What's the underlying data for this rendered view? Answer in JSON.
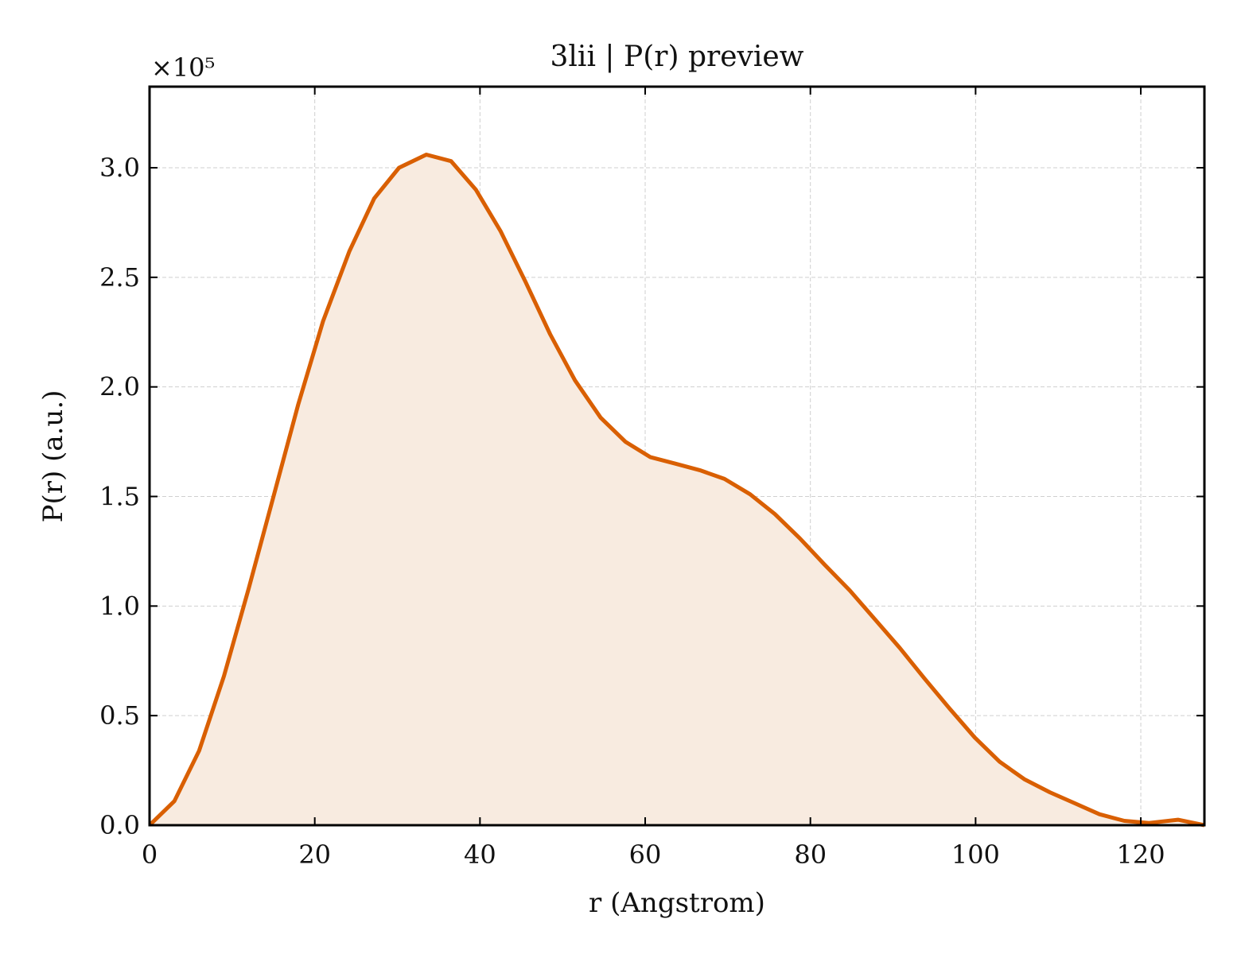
{
  "chart_data": {
    "type": "area",
    "title": "3lii | P(r) preview",
    "xlabel": "r (Angstrom)",
    "ylabel": "P(r) (a.u.)",
    "y_multiplier": "×10⁵",
    "xlim": [
      0,
      127.7
    ],
    "ylim": [
      0,
      3.37
    ],
    "xticks": [
      0,
      20,
      40,
      60,
      80,
      100,
      120
    ],
    "yticks": [
      0.0,
      0.5,
      1.0,
      1.5,
      2.0,
      2.5,
      3.0
    ],
    "xtick_labels": [
      "0",
      "20",
      "40",
      "60",
      "80",
      "100",
      "120"
    ],
    "ytick_labels": [
      "0.0",
      "0.5",
      "1.0",
      "1.5",
      "2.0",
      "2.5",
      "3.0"
    ],
    "grid": true,
    "line_color": "#d95f02",
    "fill_color": "#f8ebe0",
    "series": [
      {
        "x": [
          0,
          3.0,
          6.0,
          9.0,
          12.0,
          15.0,
          18.0,
          21.0,
          24.2,
          27.2,
          30.2,
          33.5,
          36.5,
          39.5,
          42.5,
          45.5,
          48.5,
          51.5,
          54.6,
          57.6,
          60.6,
          63.6,
          66.6,
          69.6,
          72.7,
          75.7,
          78.7,
          81.7,
          84.8,
          87.8,
          90.8,
          93.8,
          96.9,
          99.9,
          102.9,
          105.9,
          109.0,
          112.0,
          115.0,
          118.0,
          121.0,
          124.5,
          127.7
        ],
        "y": [
          0.0,
          0.11,
          0.34,
          0.68,
          1.08,
          1.5,
          1.92,
          2.3,
          2.62,
          2.86,
          3.0,
          3.06,
          3.03,
          2.9,
          2.71,
          2.48,
          2.24,
          2.03,
          1.86,
          1.75,
          1.68,
          1.65,
          1.62,
          1.58,
          1.51,
          1.42,
          1.31,
          1.19,
          1.07,
          0.94,
          0.81,
          0.67,
          0.53,
          0.4,
          0.29,
          0.21,
          0.15,
          0.1,
          0.05,
          0.02,
          0.01,
          0.025,
          0.0
        ]
      }
    ]
  }
}
